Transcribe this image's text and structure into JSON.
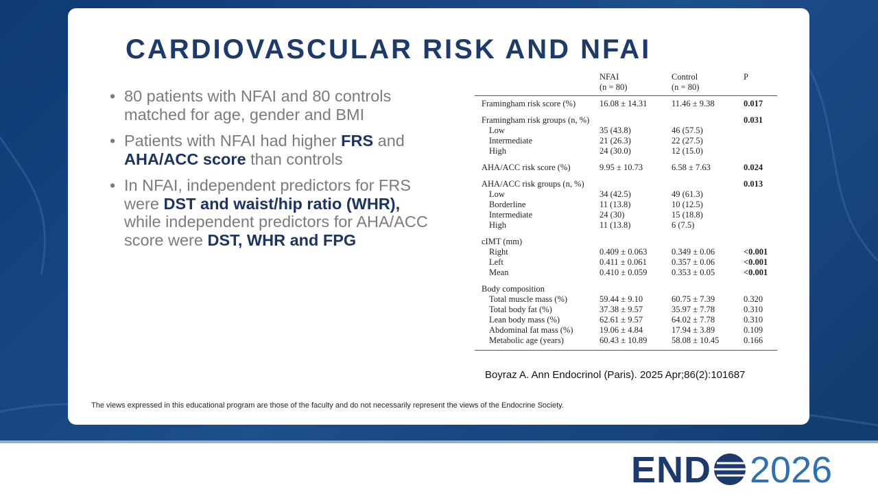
{
  "title": "CARDIOVASCULAR RISK AND NFAI",
  "bullets": [
    [
      {
        "text": "80 patients with NFAI and 80 controls matched for age, gender and BMI"
      }
    ],
    [
      {
        "text": "Patients with NFAI had higher "
      },
      {
        "text": "FRS",
        "bold": true
      },
      {
        "text": " and "
      },
      {
        "text": "AHA/ACC score",
        "bold": true
      },
      {
        "text": " than controls"
      }
    ],
    [
      {
        "text": "In NFAI, independent predictors for FRS were "
      },
      {
        "text": "DST and waist/hip ratio (WHR),",
        "bold": true
      },
      {
        "text": " while independent predictors for AHA/ACC score were "
      },
      {
        "text": "DST, WHR and FPG",
        "bold": true
      }
    ]
  ],
  "table": {
    "header": [
      [
        "NFAI",
        "(n = 80)"
      ],
      [
        "Control",
        "(n = 80)"
      ],
      [
        "P"
      ]
    ],
    "groups": [
      {
        "rows": [
          {
            "label": "Framingham risk score (%)",
            "nfai": "16.08 ± 14.31",
            "control": "11.46 ± 9.38",
            "p": "0.017",
            "p_bold": true
          }
        ]
      },
      {
        "rows": [
          {
            "label": "Framingham risk groups (n, %)",
            "p": "0.031",
            "p_bold": true
          },
          {
            "label": "Low",
            "indent": true,
            "nfai": "35 (43.8)",
            "control": "46 (57.5)"
          },
          {
            "label": "Intermediate",
            "indent": true,
            "nfai": "21 (26.3)",
            "control": "22 (27.5)"
          },
          {
            "label": "High",
            "indent": true,
            "nfai": "24 (30.0)",
            "control": "12 (15.0)"
          }
        ]
      },
      {
        "rows": [
          {
            "label": "AHA/ACC risk score (%)",
            "nfai": "9.95 ± 10.73",
            "control": "6.58 ± 7.63",
            "p": "0.024",
            "p_bold": true
          }
        ]
      },
      {
        "rows": [
          {
            "label": "AHA/ACC risk groups (n, %)",
            "p": "0.013",
            "p_bold": true
          },
          {
            "label": "Low",
            "indent": true,
            "nfai": "34 (42.5)",
            "control": "49 (61.3)"
          },
          {
            "label": "Borderline",
            "indent": true,
            "nfai": "11 (13.8)",
            "control": "10 (12.5)"
          },
          {
            "label": "Intermediate",
            "indent": true,
            "nfai": "24 (30)",
            "control": "15 (18.8)"
          },
          {
            "label": "High",
            "indent": true,
            "nfai": "11 (13.8)",
            "control": "6 (7.5)"
          }
        ]
      },
      {
        "rows": [
          {
            "label": "cIMT (mm)"
          },
          {
            "label": "Right",
            "indent": true,
            "nfai": "0.409 ± 0.063",
            "control": "0.349 ± 0.06",
            "p": "<0.001",
            "p_bold": true
          },
          {
            "label": "Left",
            "indent": true,
            "nfai": "0.411 ± 0.061",
            "control": "0.357 ± 0.06",
            "p": "<0.001",
            "p_bold": true
          },
          {
            "label": "Mean",
            "indent": true,
            "nfai": "0.410 ± 0.059",
            "control": "0.353 ± 0.05",
            "p": "<0.001",
            "p_bold": true
          }
        ]
      },
      {
        "rows": [
          {
            "label": "Body composition"
          },
          {
            "label": "Total muscle mass (%)",
            "indent": true,
            "nfai": "59.44 ± 9.10",
            "control": "60.75 ± 7.39",
            "p": "0.320"
          },
          {
            "label": "Total body fat (%)",
            "indent": true,
            "nfai": "37.38 ± 9.57",
            "control": "35.97 ± 7.78",
            "p": "0.310"
          },
          {
            "label": "Lean body mass (%)",
            "indent": true,
            "nfai": "62.61 ± 9.57",
            "control": "64.02 ± 7.78",
            "p": "0.310"
          },
          {
            "label": "Abdominal fat mass (%)",
            "indent": true,
            "nfai": "19.06 ± 4.84",
            "control": "17.94 ± 3.89",
            "p": "0.109"
          },
          {
            "label": "Metabolic age (years)",
            "indent": true,
            "nfai": "60.43 ± 10.89",
            "control": "58.08 ± 10.45",
            "p": "0.166"
          }
        ]
      }
    ]
  },
  "citation": "Boyraz A. Ann Endocrinol (Paris). 2025 Apr;86(2):101687",
  "disclaimer": "The views expressed in this educational program are those of the faculty and do not necessarily represent the views of the Endocrine Society.",
  "logo": {
    "left": "END",
    "right": "2026"
  }
}
